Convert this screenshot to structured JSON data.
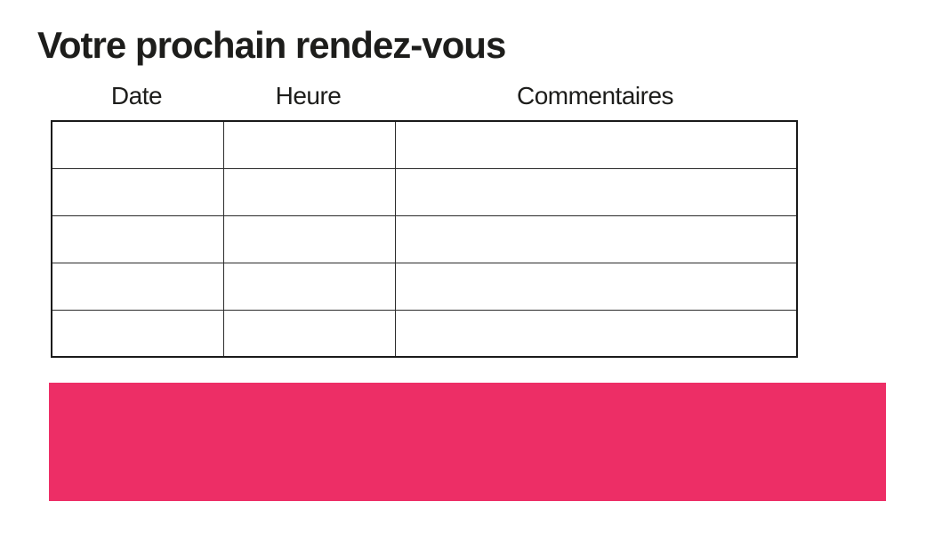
{
  "page": {
    "title": "Votre prochain rendez-vous"
  },
  "appointments_table": {
    "columns": [
      {
        "label": "Date"
      },
      {
        "label": "Heure"
      },
      {
        "label": "Commentaires"
      }
    ],
    "rows": [
      [
        "",
        "",
        ""
      ],
      [
        "",
        "",
        ""
      ],
      [
        "",
        "",
        ""
      ],
      [
        "",
        "",
        ""
      ],
      [
        "",
        "",
        ""
      ]
    ]
  },
  "colors": {
    "accent_pink": "#ED2E66",
    "text": "#1D1D1B",
    "table_border": "#2B2B2B"
  }
}
